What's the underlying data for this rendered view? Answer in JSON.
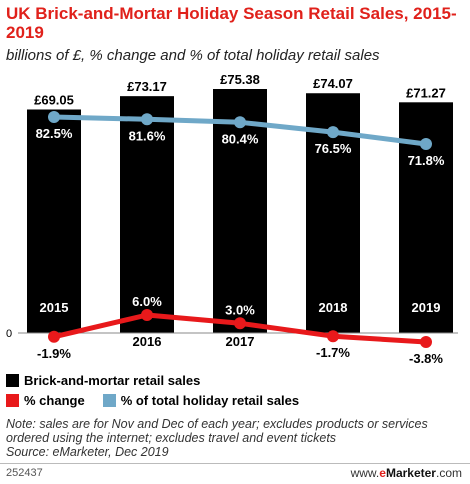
{
  "header": {
    "title": "UK Brick-and-Mortar Holiday Season Retail Sales, 2015-2019",
    "subtitle": "billions of £, % change and % of total holiday retail sales"
  },
  "chart_data": {
    "type": "bar",
    "categories": [
      "2015",
      "2016",
      "2017",
      "2018",
      "2019"
    ],
    "series": [
      {
        "name": "Brick-and-mortar retail sales",
        "kind": "bar",
        "color": "#000000",
        "values": [
          69.05,
          73.17,
          75.38,
          74.07,
          71.27
        ],
        "labels": [
          "£69.05",
          "£73.17",
          "£75.38",
          "£74.07",
          "£71.27"
        ]
      },
      {
        "name": "% change",
        "kind": "line",
        "color": "#e8191b",
        "values": [
          -1.9,
          6.0,
          3.0,
          -1.7,
          -3.8
        ],
        "labels": [
          "-1.9%",
          "6.0%",
          "3.0%",
          "-1.7%",
          "-3.8%"
        ]
      },
      {
        "name": "% of total holiday retail sales",
        "kind": "line",
        "color": "#6fa8c8",
        "values": [
          82.5,
          81.6,
          80.4,
          76.5,
          71.8
        ],
        "labels": [
          "82.5%",
          "81.6%",
          "80.4%",
          "76.5%",
          "71.8%"
        ]
      }
    ],
    "ylim": [
      0,
      80
    ],
    "zero_label": "0",
    "legend_position": "bottom",
    "grid": false
  },
  "note": {
    "text": "Note: sales are for Nov and Dec of each year; excludes products or services ordered using the internet; excludes travel and event tickets",
    "source": "Source: eMarketer, Dec 2019"
  },
  "footer": {
    "chart_id": "252437",
    "brand_prefix": "www.",
    "brand_e": "e",
    "brand_name": "Marketer",
    "brand_suffix": ".com"
  }
}
